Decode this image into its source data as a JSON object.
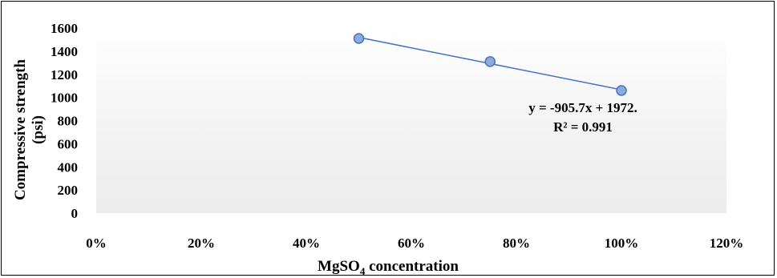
{
  "chart_data": {
    "type": "scatter",
    "x": [
      0.5,
      0.75,
      1.0
    ],
    "y": [
      1510,
      1310,
      1060
    ],
    "xlim": [
      0,
      1.2
    ],
    "ylim": [
      0,
      1600
    ],
    "x_ticks": [
      "0%",
      "20%",
      "40%",
      "60%",
      "80%",
      "100%",
      "120%"
    ],
    "y_ticks": [
      "0",
      "200",
      "400",
      "600",
      "800",
      "1000",
      "1200",
      "1400",
      "1600"
    ],
    "x_tick_values": [
      0,
      0.2,
      0.4,
      0.6,
      0.8,
      1.0,
      1.2
    ],
    "y_tick_values": [
      0,
      200,
      400,
      600,
      800,
      1000,
      1200,
      1400,
      1600
    ],
    "xlabel": {
      "main": "MgSO",
      "sub": "4",
      "rest": " concentration"
    },
    "ylabel_line1": "Compressive strength",
    "ylabel_line2": "(psi)",
    "trendline": {
      "slope": -905.7,
      "intercept": 1972,
      "equation": "y = -905.7x + 1972.",
      "r2": "R² = 0.991"
    },
    "grid": false,
    "legend": "none",
    "colors": {
      "marker_fill": "#8eaadb",
      "marker_stroke": "#4472c4",
      "line": "#4472c4"
    }
  }
}
